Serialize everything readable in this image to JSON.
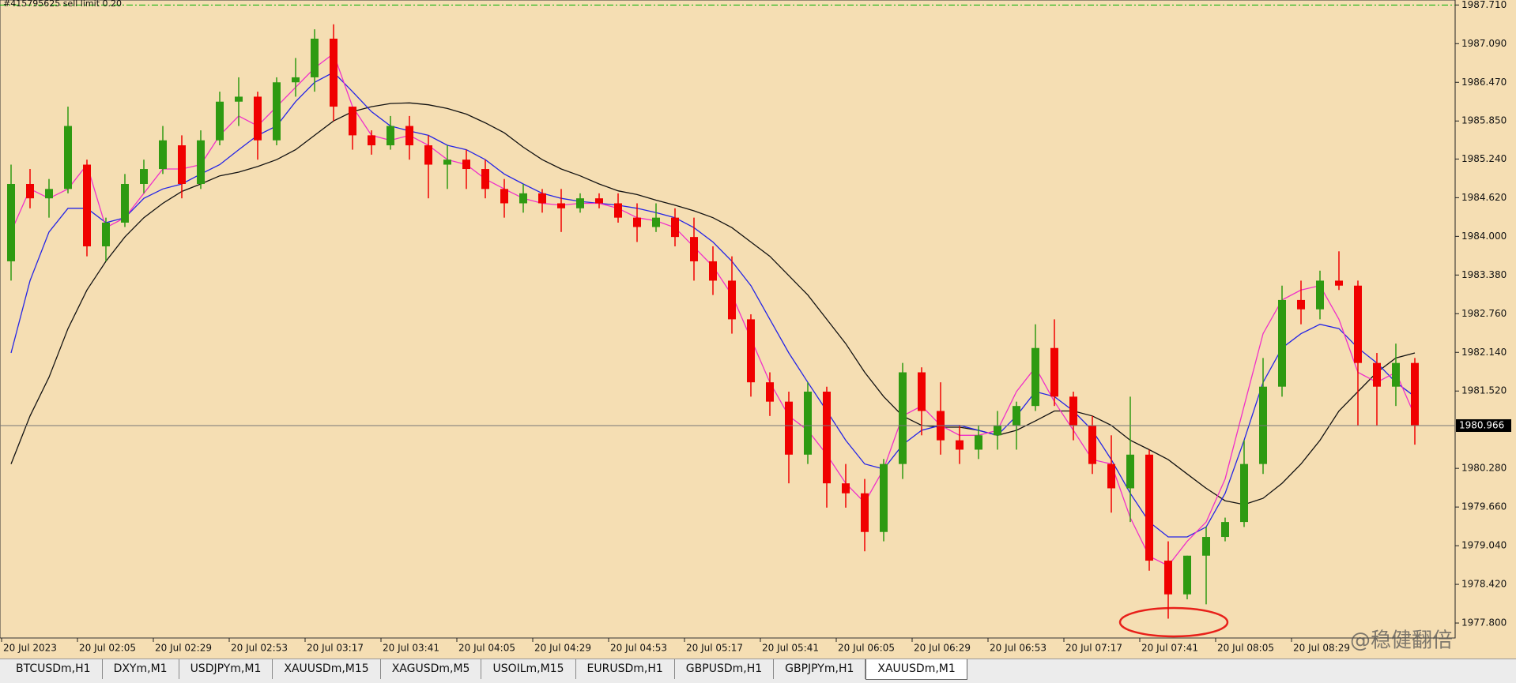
{
  "chart_data": {
    "type": "candlestick",
    "order_line": {
      "label": "#415795625 sell limit 0.20",
      "value": 1987.71,
      "color": "#00b000"
    },
    "last_price": 1980.966,
    "categories": [
      "20 Jul 2023",
      null,
      null,
      null,
      "20 Jul 02:05",
      null,
      null,
      null,
      "20 Jul 02:29",
      null,
      null,
      null,
      "20 Jul 02:53",
      null,
      null,
      null,
      "20 Jul 03:17",
      null,
      null,
      null,
      "20 Jul 03:41",
      null,
      null,
      null,
      "20 Jul 04:05",
      null,
      null,
      null,
      "20 Jul 04:29",
      null,
      null,
      null,
      "20 Jul 04:53",
      null,
      null,
      null,
      "20 Jul 05:17",
      null,
      null,
      null,
      "20 Jul 05:41",
      null,
      null,
      null,
      "20 Jul 06:05",
      null,
      null,
      null,
      "20 Jul 06:29",
      null,
      null,
      null,
      "20 Jul 06:53",
      null,
      null,
      null,
      "20 Jul 07:17",
      null,
      null,
      null,
      "20 Jul 07:41",
      null,
      null,
      null,
      "20 Jul 08:05",
      null,
      null,
      null,
      "20 Jul 08:29",
      null,
      null,
      null,
      null,
      null,
      null
    ],
    "open": [
      1983.6,
      1984.84,
      1984.61,
      1984.76,
      1985.15,
      1983.84,
      1984.22,
      1984.84,
      1985.08,
      1985.46,
      1984.84,
      1985.54,
      1986.16,
      1986.24,
      1985.54,
      1986.47,
      1986.55,
      1987.17,
      1986.08,
      1985.62,
      1985.46,
      1985.77,
      1985.46,
      1985.15,
      1985.23,
      1985.08,
      1984.76,
      1984.53,
      1984.69,
      1984.53,
      1984.45,
      1984.61,
      1984.53,
      1984.3,
      1984.15,
      1984.3,
      1983.99,
      1983.6,
      1983.29,
      1982.67,
      1981.66,
      1981.35,
      1980.5,
      1981.51,
      1980.04,
      1979.88,
      1979.26,
      1980.35,
      1981.82,
      1981.2,
      1980.73,
      1980.58,
      1980.81,
      1980.97,
      1981.28,
      1982.21,
      1981.43,
      1980.97,
      1980.35,
      1979.96,
      1980.5,
      1978.8,
      1978.26,
      1978.88,
      1979.18,
      1979.42,
      1980.35,
      1981.59,
      1982.98,
      1982.83,
      1983.29,
      1983.21,
      1981.97,
      1981.59,
      1981.97
    ],
    "high": [
      1985.15,
      1985.08,
      1984.92,
      1986.08,
      1985.23,
      1984.3,
      1985.0,
      1985.23,
      1985.77,
      1985.62,
      1985.7,
      1986.32,
      1986.55,
      1986.32,
      1986.55,
      1986.86,
      1987.32,
      1987.4,
      1986.08,
      1985.7,
      1985.93,
      1985.93,
      1985.62,
      1985.46,
      1985.39,
      1985.23,
      1984.92,
      1984.84,
      1984.76,
      1984.76,
      1984.69,
      1984.69,
      1984.69,
      1984.53,
      1984.53,
      1984.45,
      1984.3,
      1983.84,
      1983.68,
      1982.75,
      1981.82,
      1981.51,
      1981.66,
      1981.59,
      1980.35,
      1980.11,
      1980.43,
      1981.97,
      1981.9,
      1981.66,
      1980.97,
      1980.97,
      1981.2,
      1981.35,
      1982.59,
      1982.67,
      1981.51,
      1981.12,
      1980.81,
      1981.43,
      1980.58,
      1979.11,
      1978.88,
      1979.34,
      1979.49,
      1980.73,
      1982.05,
      1983.21,
      1983.29,
      1983.45,
      1983.76,
      1983.29,
      1982.13,
      1982.28,
      1982.05
    ],
    "low": [
      1983.29,
      1984.45,
      1984.3,
      1984.69,
      1983.68,
      1983.6,
      1984.15,
      1984.69,
      1985.0,
      1984.61,
      1984.76,
      1985.46,
      1985.77,
      1985.23,
      1985.46,
      1986.24,
      1986.32,
      1985.85,
      1985.39,
      1985.31,
      1985.39,
      1985.23,
      1984.61,
      1984.76,
      1984.76,
      1984.61,
      1984.3,
      1984.38,
      1984.38,
      1984.07,
      1984.38,
      1984.45,
      1984.22,
      1983.91,
      1984.07,
      1983.84,
      1983.29,
      1983.06,
      1982.44,
      1981.43,
      1981.12,
      1980.04,
      1980.35,
      1979.65,
      1979.65,
      1978.95,
      1979.11,
      1980.11,
      1980.81,
      1980.5,
      1980.35,
      1980.43,
      1980.58,
      1980.58,
      1981.2,
      1981.28,
      1980.73,
      1980.19,
      1979.57,
      1979.42,
      1978.64,
      1977.87,
      1978.18,
      1978.1,
      1979.11,
      1979.34,
      1980.19,
      1981.43,
      1982.59,
      1982.67,
      1983.14,
      1980.97,
      1980.97,
      1981.28,
      1980.66
    ],
    "close": [
      1984.84,
      1984.61,
      1984.76,
      1985.77,
      1983.84,
      1984.22,
      1984.84,
      1985.08,
      1985.54,
      1984.84,
      1985.54,
      1986.16,
      1986.24,
      1985.54,
      1986.47,
      1986.55,
      1987.17,
      1986.08,
      1985.62,
      1985.46,
      1985.77,
      1985.46,
      1985.15,
      1985.23,
      1985.08,
      1984.76,
      1984.53,
      1984.69,
      1984.53,
      1984.45,
      1984.61,
      1984.53,
      1984.3,
      1984.15,
      1984.3,
      1983.99,
      1983.6,
      1983.29,
      1982.67,
      1981.66,
      1981.35,
      1980.5,
      1981.51,
      1980.04,
      1979.88,
      1979.26,
      1980.35,
      1981.82,
      1981.2,
      1980.73,
      1980.58,
      1980.81,
      1980.97,
      1981.28,
      1982.21,
      1981.43,
      1980.97,
      1980.35,
      1979.96,
      1980.5,
      1978.8,
      1978.26,
      1978.88,
      1979.18,
      1979.42,
      1980.35,
      1981.59,
      1982.98,
      1982.83,
      1983.29,
      1983.21,
      1981.97,
      1981.59,
      1981.97,
      1980.97
    ],
    "up_color": "#2e9a12",
    "down_color": "#f00000",
    "series": [
      {
        "color": "#111111",
        "values": [
          1980.35,
          1981.12,
          1981.74,
          1982.52,
          1983.14,
          1983.6,
          1983.99,
          1984.3,
          1984.53,
          1984.72,
          1984.84,
          1984.97,
          1985.03,
          1985.12,
          1985.23,
          1985.39,
          1985.62,
          1985.85,
          1986.0,
          1986.08,
          1986.13,
          1986.14,
          1986.11,
          1986.05,
          1985.96,
          1985.82,
          1985.66,
          1985.43,
          1985.23,
          1985.08,
          1984.97,
          1984.84,
          1984.73,
          1984.67,
          1984.58,
          1984.5,
          1984.41,
          1984.3,
          1984.14,
          1983.91,
          1983.68,
          1983.37,
          1983.06,
          1982.67,
          1982.28,
          1981.82,
          1981.43,
          1981.12,
          1980.97,
          1980.94,
          1980.94,
          1980.89,
          1980.81,
          1980.89,
          1981.04,
          1981.2,
          1981.2,
          1981.12,
          1980.97,
          1980.73,
          1980.58,
          1980.42,
          1980.19,
          1979.96,
          1979.76,
          1979.7,
          1979.8,
          1980.04,
          1980.35,
          1980.73,
          1981.2,
          1981.51,
          1981.82,
          1982.05,
          1982.13
        ]
      },
      {
        "color": "#2424e6",
        "values": [
          1982.13,
          1983.29,
          1984.07,
          1984.45,
          1984.45,
          1984.22,
          1984.3,
          1984.61,
          1984.76,
          1984.84,
          1985.0,
          1985.15,
          1985.39,
          1985.62,
          1985.77,
          1986.16,
          1986.47,
          1986.63,
          1986.32,
          1986.0,
          1985.77,
          1985.69,
          1985.62,
          1985.46,
          1985.39,
          1985.23,
          1985.0,
          1984.84,
          1984.69,
          1984.61,
          1984.56,
          1984.53,
          1984.5,
          1984.45,
          1984.38,
          1984.3,
          1984.14,
          1983.91,
          1983.6,
          1983.21,
          1982.67,
          1982.13,
          1981.66,
          1981.2,
          1980.73,
          1980.35,
          1980.27,
          1980.66,
          1980.89,
          1980.97,
          1980.97,
          1980.89,
          1980.81,
          1981.12,
          1981.51,
          1981.43,
          1981.2,
          1980.89,
          1980.42,
          1979.88,
          1979.42,
          1979.18,
          1979.18,
          1979.34,
          1979.88,
          1980.73,
          1981.66,
          1982.21,
          1982.44,
          1982.59,
          1982.52,
          1982.21,
          1981.97,
          1981.66,
          1981.43
        ]
      },
      {
        "color": "#f030c8",
        "values": [
          1984.07,
          1984.76,
          1984.61,
          1984.76,
          1985.15,
          1984.14,
          1984.3,
          1984.69,
          1985.08,
          1985.08,
          1985.15,
          1985.62,
          1985.93,
          1985.77,
          1986.08,
          1986.39,
          1986.7,
          1986.93,
          1986.08,
          1985.62,
          1985.54,
          1985.62,
          1985.46,
          1985.23,
          1985.15,
          1984.92,
          1984.76,
          1984.61,
          1984.53,
          1984.5,
          1984.53,
          1984.53,
          1984.45,
          1984.3,
          1984.25,
          1984.14,
          1983.83,
          1983.52,
          1983.06,
          1982.36,
          1981.66,
          1981.12,
          1980.89,
          1980.5,
          1980.04,
          1979.73,
          1980.27,
          1981.12,
          1981.28,
          1980.97,
          1980.81,
          1980.81,
          1980.89,
          1981.51,
          1981.9,
          1981.35,
          1980.89,
          1980.42,
          1980.35,
          1979.49,
          1978.87,
          1978.72,
          1979.11,
          1979.42,
          1980.11,
          1981.28,
          1982.44,
          1982.98,
          1983.14,
          1983.21,
          1982.67,
          1981.82,
          1981.66,
          1981.82,
          1981.12
        ]
      }
    ],
    "ylim": [
      1977.56,
      1987.79
    ],
    "yticks": [
      {
        "value": 1987.71,
        "label": "1987.710"
      },
      {
        "value": 1987.09,
        "label": "1987.090"
      },
      {
        "value": 1986.47,
        "label": "1986.470"
      },
      {
        "value": 1985.85,
        "label": "1985.850"
      },
      {
        "value": 1985.24,
        "label": "1985.240"
      },
      {
        "value": 1984.62,
        "label": "1984.620"
      },
      {
        "value": 1984.0,
        "label": "1984.000"
      },
      {
        "value": 1983.38,
        "label": "1983.380"
      },
      {
        "value": 1982.76,
        "label": "1982.760"
      },
      {
        "value": 1982.14,
        "label": "1982.140"
      },
      {
        "value": 1981.52,
        "label": "1981.520"
      },
      {
        "value": 1980.28,
        "label": "1980.280"
      },
      {
        "value": 1979.66,
        "label": "1979.660"
      },
      {
        "value": 1979.04,
        "label": "1979.040"
      },
      {
        "value": 1978.42,
        "label": "1978.420"
      },
      {
        "value": 1977.8,
        "label": "1977.800"
      }
    ],
    "grid": false
  },
  "watermark": "@稳健翻倍",
  "tabs": [
    "BTCUSDm,H1",
    "DXYm,M1",
    "USDJPYm,M1",
    "XAUUSDm,M15",
    "XAGUSDm,M5",
    "USOILm,M15",
    "EURUSDm,H1",
    "GBPUSDm,H1",
    "GBPJPYm,H1",
    "XAUUSDm,M1"
  ],
  "active_tab": 9
}
